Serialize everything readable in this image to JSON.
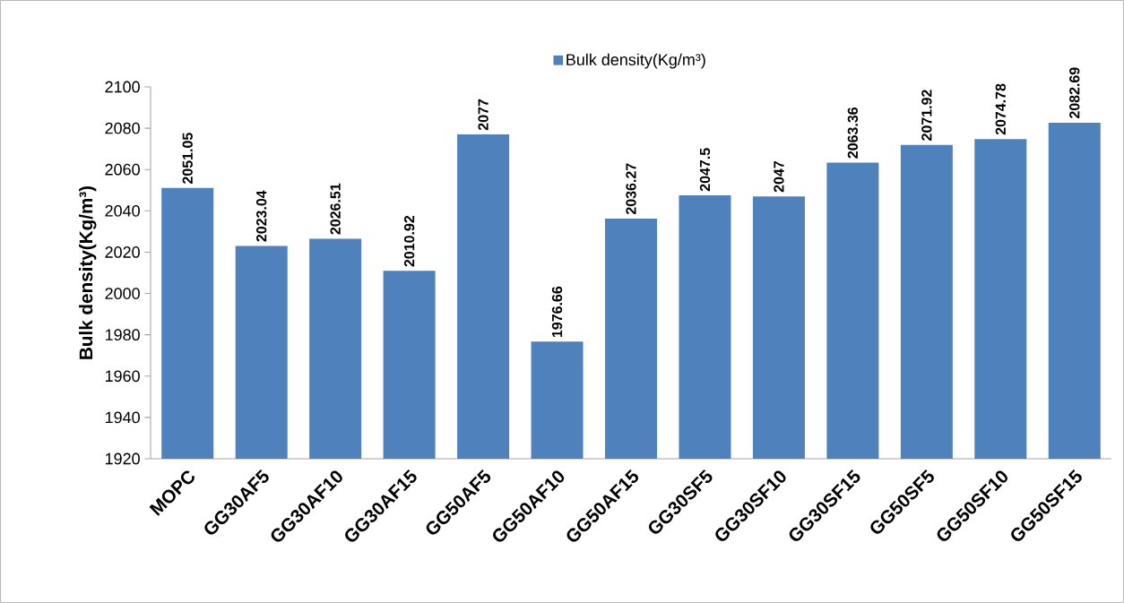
{
  "chart_data": {
    "type": "bar",
    "ylabel": "Bulk density(Kg/m³)",
    "categories": [
      "MOPC",
      "GG30AF5",
      "GG30AF10",
      "GG30AF15",
      "GG50AF5",
      "GG50AF10",
      "GG50AF15",
      "GG30SF5",
      "GG30SF10",
      "GG30SF15",
      "GG50SF5",
      "GG50SF10",
      "GG50SF15"
    ],
    "series": [
      {
        "name": "Bulk density(Kg/m³)",
        "color": "#4f81bd",
        "values": [
          2051.05,
          2023.04,
          2026.51,
          2010.92,
          2077,
          1976.66,
          2036.27,
          2047.5,
          2047,
          2063.36,
          2071.92,
          2074.78,
          2082.69
        ]
      }
    ],
    "ylim": [
      1920,
      2100
    ],
    "yticks": [
      1920,
      1940,
      1960,
      1980,
      2000,
      2020,
      2040,
      2060,
      2080,
      2100
    ],
    "data_labels": true,
    "legend": "top",
    "grid": false
  }
}
